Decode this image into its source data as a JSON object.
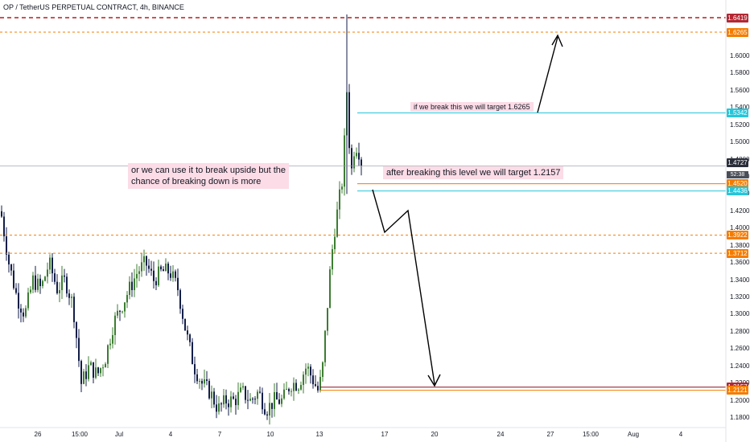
{
  "header": {
    "symbol_title": "OP / TetherUS PERPETUAL CONTRACT, 4h, BINANCE"
  },
  "colors": {
    "up_candle": "#3d7d32",
    "down_candle": "#131e48",
    "cyan_line": "#26c6da",
    "orange_line": "#f57c00",
    "red_line": "#b71c1c",
    "dark_red_line": "#880e1e",
    "note_bg": "#fcdce6",
    "current_price_tag": "#2a2e39",
    "tag_red": "#b22833",
    "tag_orange": "#f57c00",
    "tag_cyan": "#26c6da"
  },
  "annotations": {
    "top_note": "if we break this we will target 1.6265",
    "mid_note": "after breaking this level we will target 1.2157",
    "left_note_line1": "or we can use it to break upside but the",
    "left_note_line2": "chance of breaking down is more"
  },
  "countdown": "52:38",
  "chart_data": {
    "type": "candlestick",
    "title": "OP / TetherUS PERPETUAL CONTRACT, 4h, BINANCE",
    "y_axis": {
      "range": [
        1.17,
        1.66
      ],
      "ticks": [
        "1.6000",
        "1.5800",
        "1.5600",
        "1.5400",
        "1.5200",
        "1.5000",
        "1.4800",
        "1.4600",
        "1.4400",
        "1.4200",
        "1.4000",
        "1.3800",
        "1.3600",
        "1.3400",
        "1.3200",
        "1.3000",
        "1.2800",
        "1.2600",
        "1.2400",
        "1.2200",
        "1.2000",
        "1.1800"
      ]
    },
    "x_axis": {
      "ticks": [
        "26",
        "15:00",
        "Jul",
        "4",
        "7",
        "10",
        "13",
        "17",
        "20",
        "24",
        "27",
        "15:00",
        "Aug",
        "4"
      ]
    },
    "current_price": 1.4727,
    "price_levels": [
      {
        "value": 1.6419,
        "label": "1.6419",
        "style": "dashed",
        "color": "#b71c1c"
      },
      {
        "value": 1.6265,
        "label": "1.6265",
        "style": "dashed",
        "color": "#f57c00"
      },
      {
        "value": 1.5342,
        "label": "1.5342",
        "style": "solid",
        "color": "#26c6da"
      },
      {
        "value": 1.452,
        "label": "1.4520",
        "style": "solid",
        "color": "#f57c00"
      },
      {
        "value": 1.4436,
        "label": "1.4436",
        "style": "solid",
        "color": "#26c6da"
      },
      {
        "value": 1.3922,
        "label": "1.3922",
        "style": "dashed",
        "color": "#f57c00"
      },
      {
        "value": 1.3712,
        "label": "1.3712",
        "style": "dashed",
        "color": "#f57c00"
      },
      {
        "value": 1.2157,
        "label": "1.2157",
        "style": "solid",
        "color": "#880e1e"
      },
      {
        "value": 1.2121,
        "label": "1.2121",
        "style": "solid",
        "color": "#f57c00"
      }
    ],
    "series": [
      {
        "segment": "jun26_to_jul1",
        "approx_range": [
          1.18,
          1.45
        ],
        "trend": "choppy"
      },
      {
        "segment": "jul1_to_jul13",
        "approx_range": [
          1.175,
          1.37
        ],
        "trend": "range then decline"
      },
      {
        "segment": "jul13_to_jul15",
        "approx_range": [
          1.19,
          1.66
        ],
        "trend": "sharp rally"
      }
    ],
    "projection_paths": [
      {
        "name": "upside",
        "points": [
          [
            1.535,
            "now"
          ],
          [
            1.622,
            "late"
          ]
        ]
      },
      {
        "name": "downside",
        "points": [
          [
            1.46,
            "now"
          ],
          [
            1.397,
            "+1d"
          ],
          [
            1.412,
            "+2d"
          ],
          [
            1.21,
            "20"
          ]
        ]
      }
    ]
  }
}
